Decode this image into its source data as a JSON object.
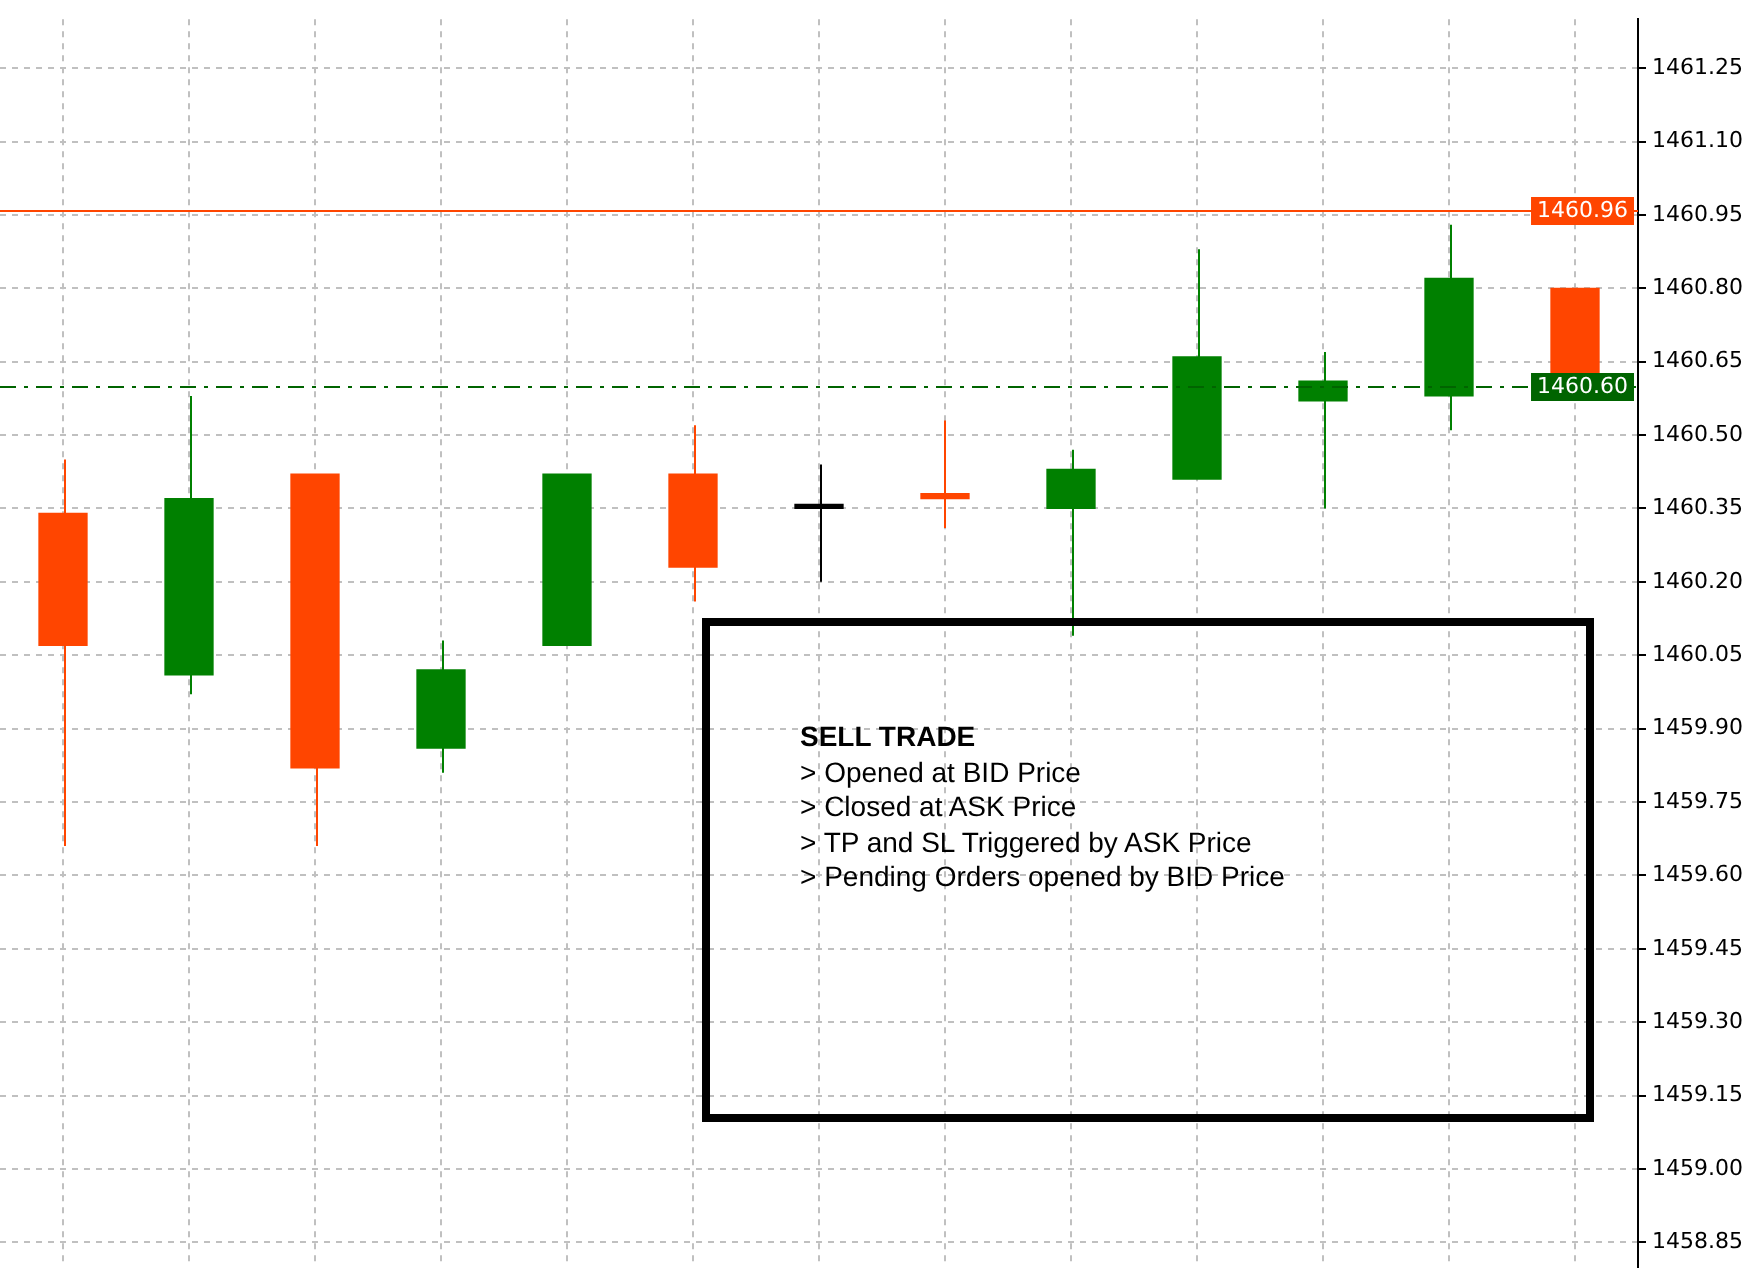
{
  "chart_data": {
    "type": "candlestick",
    "categories": [
      null,
      null,
      null,
      null,
      null,
      null,
      null,
      null,
      null,
      null,
      null,
      null,
      null
    ],
    "ohlc": [
      [
        1460.34,
        1460.45,
        1459.66,
        1460.07
      ],
      [
        1460.01,
        1460.58,
        1459.97,
        1460.37
      ],
      [
        1460.42,
        1460.42,
        1459.66,
        1459.82
      ],
      [
        1459.86,
        1460.08,
        1459.81,
        1460.02
      ],
      [
        1460.07,
        1460.42,
        1460.07,
        1460.42
      ],
      [
        1460.42,
        1460.52,
        1460.16,
        1460.23
      ],
      [
        1460.35,
        1460.44,
        1460.2,
        1460.35
      ],
      [
        1460.38,
        1460.53,
        1460.31,
        1460.37
      ],
      [
        1460.35,
        1460.47,
        1460.09,
        1460.43
      ],
      [
        1460.41,
        1460.88,
        1460.41,
        1460.66
      ],
      [
        1460.57,
        1460.67,
        1460.35,
        1460.61
      ],
      [
        1460.58,
        1460.93,
        1460.51,
        1460.82
      ],
      [
        1460.8,
        1460.8,
        1460.6,
        1460.6
      ]
    ],
    "colors": [
      "#ff4500",
      "#008000",
      "#ff4500",
      "#008000",
      "#008000",
      "#ff4500",
      "#000000",
      "#ff4500",
      "#008000",
      "#008000",
      "#008000",
      "#008000",
      "#ff4500"
    ],
    "ylim": [
      1458.8,
      1461.35
    ],
    "yticks": [
      {
        "value": 1458.85,
        "label": "1458.85"
      },
      {
        "value": 1459,
        "label": "1459.00"
      },
      {
        "value": 1459.15,
        "label": "1459.15"
      },
      {
        "value": 1459.3,
        "label": "1459.30"
      },
      {
        "value": 1459.45,
        "label": "1459.45"
      },
      {
        "value": 1459.6,
        "label": "1459.60"
      },
      {
        "value": 1459.75,
        "label": "1459.75"
      },
      {
        "value": 1459.9,
        "label": "1459.90"
      },
      {
        "value": 1460.05,
        "label": "1460.05"
      },
      {
        "value": 1460.2,
        "label": "1460.20"
      },
      {
        "value": 1460.35,
        "label": "1460.35"
      },
      {
        "value": 1460.5,
        "label": "1460.50"
      },
      {
        "value": 1460.65,
        "label": "1460.65"
      },
      {
        "value": 1460.8,
        "label": "1460.80"
      },
      {
        "value": 1460.95,
        "label": "1460.95"
      },
      {
        "value": 1461.1,
        "label": "1461.10"
      },
      {
        "value": 1461.25,
        "label": "1461.25"
      }
    ],
    "grid": true,
    "ref_lines": [
      {
        "axis": "y",
        "value": 1460.96,
        "label": "1460.96",
        "color": "#ff4500",
        "line_style": "solid"
      },
      {
        "axis": "y",
        "value": 1460.6,
        "label": "1460.60",
        "color": "#006400",
        "line_style": "dashed"
      }
    ],
    "annotations": [
      "SELL TRADE",
      "> Opened at BID Price",
      "> Closed at ASK Price",
      "> TP and SL Triggered by ASK Price",
      "> Pending Orders opened by BID Price"
    ]
  }
}
